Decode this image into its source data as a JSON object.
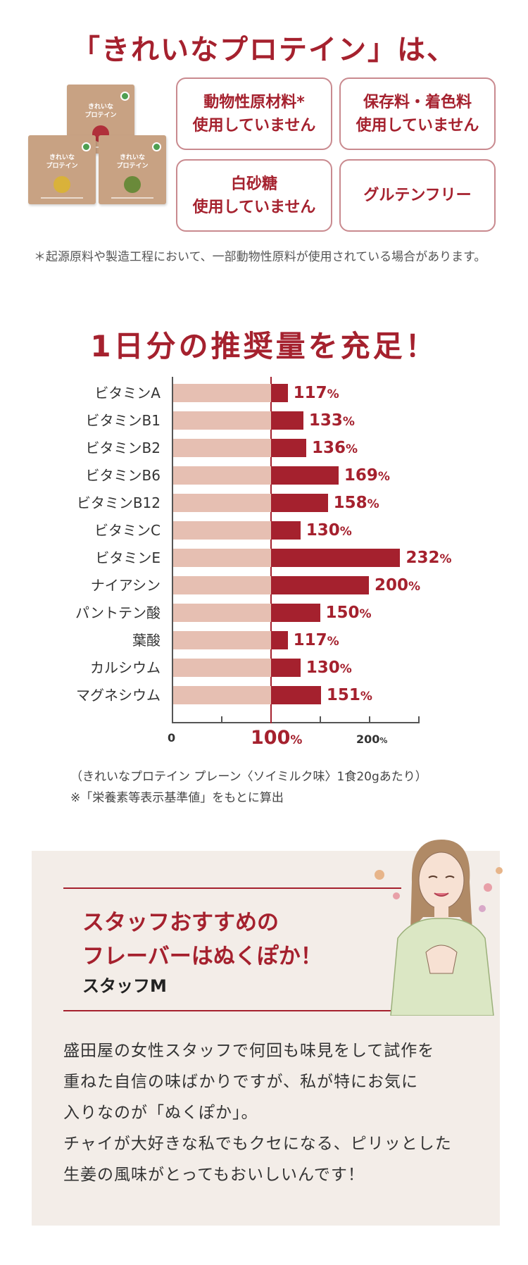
{
  "headline": "「きれいなプロテイン」は、",
  "packs": [
    {
      "title": "きれいな\nプロテイン",
      "accent": "#b0303a"
    },
    {
      "title": "きれいな\nプロテイン",
      "accent": "#d9b23a"
    },
    {
      "title": "きれいな\nプロテイン",
      "accent": "#6a8a3a"
    }
  ],
  "features": [
    "動物性原材料*\n使用していません",
    "保存料・着色料\n使用していません",
    "白砂糖\n使用していません",
    "グルテンフリー"
  ],
  "feature_note": "＊起源原料や製造工程において、一部動物性原料が使用されている場合があります。",
  "chart_title": "1日分の推奨量を充足！",
  "chart_data": {
    "type": "bar",
    "orientation": "horizontal",
    "categories": [
      "ビタミンA",
      "ビタミンB1",
      "ビタミンB2",
      "ビタミンB6",
      "ビタミンB12",
      "ビタミンC",
      "ビタミンE",
      "ナイアシン",
      "パントテン酸",
      "葉酸",
      "カルシウム",
      "マグネシウム"
    ],
    "values": [
      117,
      133,
      136,
      169,
      158,
      130,
      232,
      200,
      150,
      117,
      130,
      151
    ],
    "value_labels": [
      "117",
      "133",
      "136",
      "169",
      "158",
      "130",
      "232",
      "200",
      "150",
      "117",
      "130",
      "151"
    ],
    "unit": "%",
    "xlim": [
      0,
      250
    ],
    "x_ticks": [
      "0",
      "100",
      "200"
    ],
    "reference_line": 100,
    "colors": {
      "bar": "#a5212e",
      "base": "#e6bfb2"
    }
  },
  "chart_note": "（きれいなプロテイン プレーン〈ソイミルク味〉1食20gあたり）\n※「栄養素等表示基準値」をもとに算出",
  "staff": {
    "recommend": "スタッフおすすめの\nフレーバーはぬくぽか！",
    "name": "スタッフM",
    "body": [
      "盛田屋の女性スタッフで何回も味見をして試作を",
      "重ねた自信の味ばかりですが、私が特にお気に",
      "入りなのが「ぬくぽか」。",
      "チャイが大好きな私でもクセになる、ピリッとした",
      "生姜の風味がとってもおいしいんです！"
    ]
  },
  "colors": {
    "accent": "#a5212e",
    "panel_bg": "#f3ede8"
  }
}
